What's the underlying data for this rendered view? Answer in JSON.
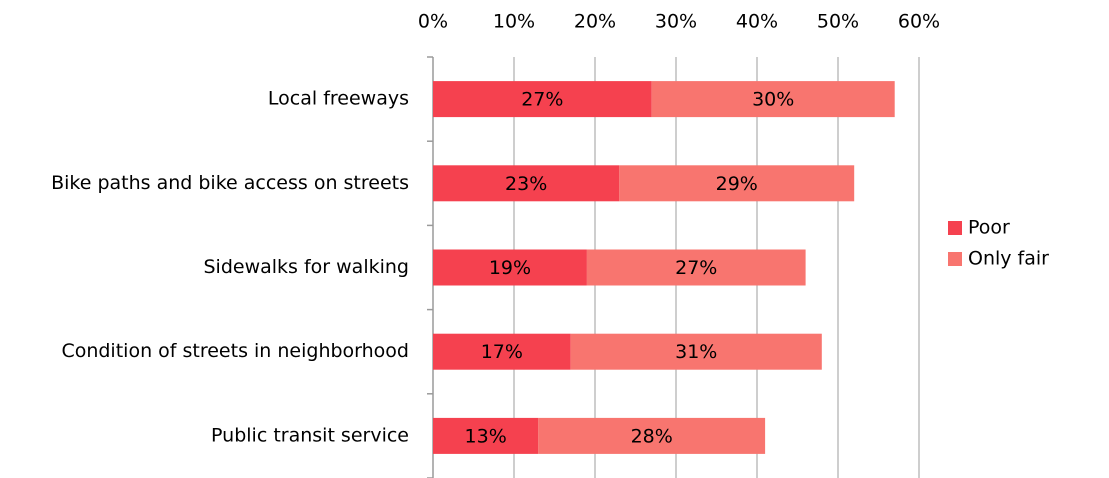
{
  "chart_data": {
    "type": "bar",
    "orientation": "horizontal",
    "stacked": true,
    "categories": [
      "Local freeways",
      "Bike paths and bike access on streets",
      "Sidewalks for walking",
      "Condition of streets in neighborhood",
      "Public transit service"
    ],
    "series": [
      {
        "name": "Poor",
        "color": "#f5414f",
        "values": [
          27,
          23,
          19,
          17,
          13
        ],
        "value_labels": [
          "27%",
          "23%",
          "19%",
          "17%",
          "13%"
        ]
      },
      {
        "name": "Only fair",
        "color": "#f8756f",
        "values": [
          30,
          29,
          27,
          31,
          28
        ],
        "value_labels": [
          "30%",
          "29%",
          "27%",
          "31%",
          "28%"
        ]
      }
    ],
    "xlim": [
      0,
      60
    ],
    "xticks": [
      {
        "value": 0,
        "label": "0%"
      },
      {
        "value": 10,
        "label": "10%"
      },
      {
        "value": 20,
        "label": "20%"
      },
      {
        "value": 30,
        "label": "30%"
      },
      {
        "value": 40,
        "label": "40%"
      },
      {
        "value": 50,
        "label": "50%"
      },
      {
        "value": 60,
        "label": "60%"
      }
    ],
    "grid": true,
    "legend": "right"
  }
}
